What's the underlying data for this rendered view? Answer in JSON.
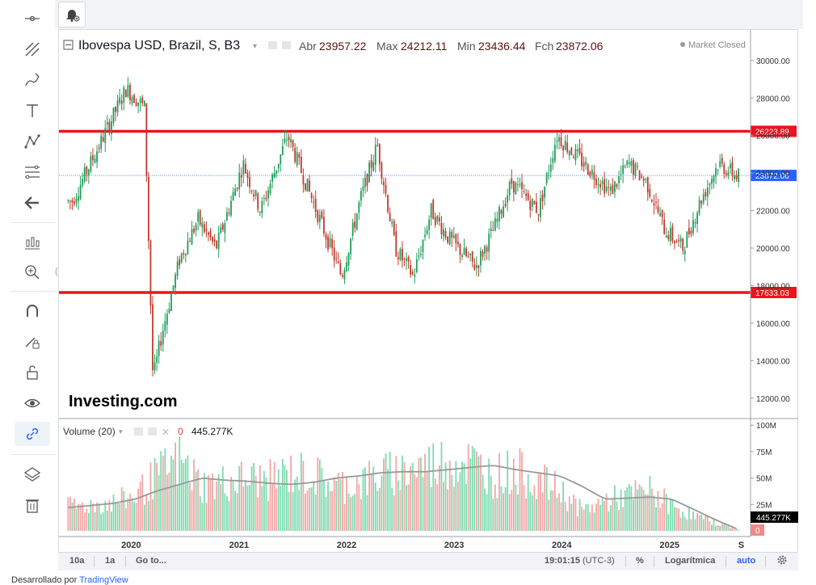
{
  "legend": {
    "title": "Ibovespa USD, Brazil, S, B3",
    "open_label": "Abr",
    "open": "23957.22",
    "high_label": "Max",
    "high": "24212.11",
    "low_label": "Min",
    "low": "23436.44",
    "close_label": "Fch",
    "close": "23872.06",
    "status": "Market Closed"
  },
  "volume_legend": {
    "title": "Volume (20)",
    "value_a": "0",
    "value_b": "445.277K"
  },
  "bottombar": {
    "range_10y": "10a",
    "range_1y": "1a",
    "goto": "Go to...",
    "time": "19:01:15",
    "tz": "(UTC-3)",
    "percent": "%",
    "log": "Logarítmica",
    "auto": "auto"
  },
  "footer": {
    "prefix": "Desarrollado por",
    "link": "TradingView"
  },
  "watermark": "Investing.com",
  "icons": [
    "crosshair-icon",
    "trendline-icon",
    "brush-icon",
    "text-icon",
    "pattern-icon",
    "fib-icon",
    "back-arrow-icon",
    "indicators-icon",
    "zoom-icon",
    "magnet-icon",
    "lock-draw-icon",
    "unlock-icon",
    "eye-icon",
    "link-icon",
    "layers-icon",
    "trash-icon",
    "alert-bell-icon",
    "settings-gear-icon"
  ],
  "colors": {
    "up": "#1e9e5a",
    "down": "#c0392b",
    "up_vol": "#7ddcb0",
    "down_vol": "#f4a7a7",
    "level_line": "#e8161d",
    "last_price": "#2962ff"
  },
  "chart_data": {
    "type": "line",
    "title": "Ibovespa USD, Brazil, S, B3",
    "x": [
      "2019-06",
      "2019-09",
      "2019-12",
      "2020-02",
      "2020-03",
      "2020-04",
      "2020-06",
      "2020-08",
      "2020-10",
      "2021-01",
      "2021-03",
      "2021-06",
      "2021-08",
      "2021-10",
      "2021-12",
      "2022-02",
      "2022-04",
      "2022-06",
      "2022-08",
      "2022-10",
      "2022-12",
      "2023-03",
      "2023-05",
      "2023-07",
      "2023-10",
      "2023-12",
      "2024-02",
      "2024-04",
      "2024-06",
      "2024-08",
      "2024-10",
      "2024-12",
      "2025-02",
      "2025-04",
      "2025-06",
      "2025-08"
    ],
    "series": [
      {
        "values": [
          22500,
          25500,
          28500,
          27500,
          13000,
          15500,
          19500,
          21500,
          20000,
          24500,
          22000,
          26000,
          23500,
          21000,
          18500,
          22500,
          25500,
          20000,
          18500,
          22000,
          20500,
          19000,
          21000,
          23500,
          22000,
          26000,
          25000,
          24000,
          23000,
          24500,
          23500,
          21000,
          20000,
          22500,
          24500,
          23872
        ]
      }
    ],
    "levels": [
      26223.89,
      17633.03
    ],
    "last_value": 23872.06,
    "ylim": [
      11000,
      31500
    ],
    "yticks": [
      12000,
      14000,
      16000,
      18000,
      20000,
      22000,
      24000,
      26000,
      28000,
      30000
    ],
    "xticks": [
      "2020",
      "2021",
      "2022",
      "2023",
      "2024",
      "2025",
      "S"
    ],
    "volume": {
      "ylim": [
        0,
        104
      ],
      "yticks": [
        "25M",
        "50M",
        "75M",
        "100M"
      ],
      "values_m": [
        24,
        26,
        28,
        35,
        55,
        70,
        45,
        48,
        52,
        50,
        58,
        55,
        45,
        48,
        55,
        60,
        65,
        70,
        68,
        55,
        60,
        50,
        40,
        20,
        30,
        35,
        40,
        25,
        15,
        8,
        1
      ],
      "ma_m": [
        22,
        24,
        26,
        30,
        38,
        44,
        50,
        48,
        47,
        45,
        44,
        46,
        50,
        52,
        55,
        56,
        56,
        58,
        60,
        62,
        58,
        55,
        52,
        42,
        30,
        31,
        32,
        30,
        20,
        10,
        1
      ],
      "last_label": "445.277K",
      "zero_label": "0"
    }
  }
}
